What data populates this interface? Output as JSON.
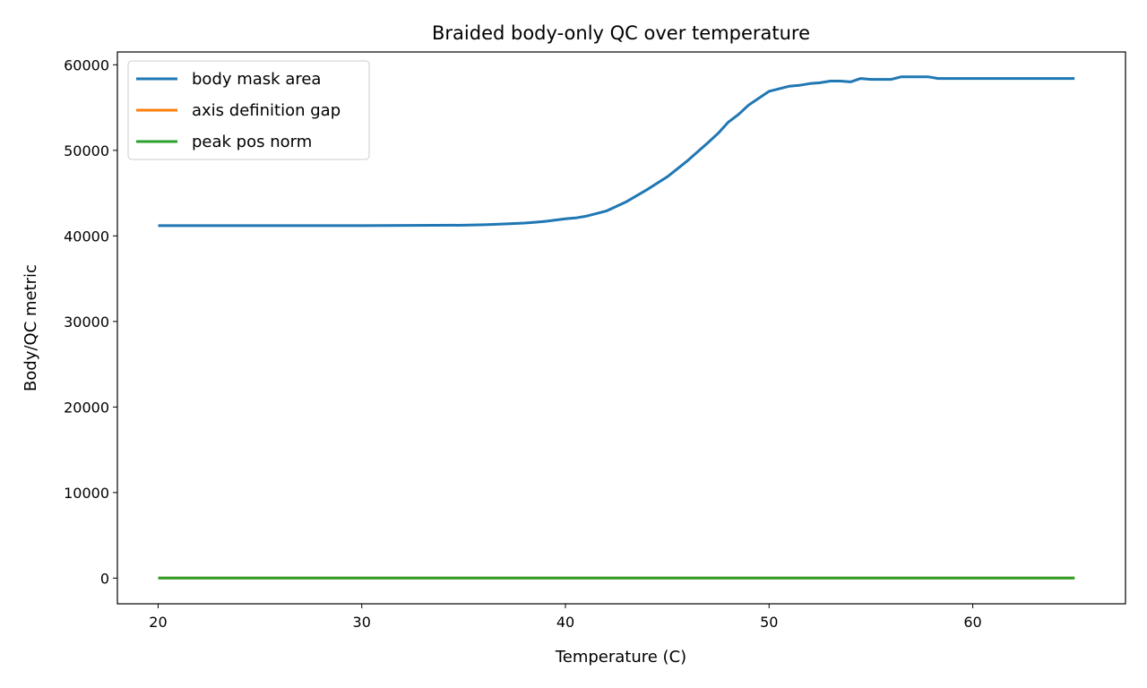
{
  "chart_data": {
    "type": "line",
    "title": "Braided body-only QC over temperature",
    "xlabel": "Temperature (C)",
    "ylabel": "Body/QC metric",
    "xlim": [
      18,
      67.5
    ],
    "ylim": [
      -3000,
      61500
    ],
    "xticks": [
      20,
      30,
      40,
      50,
      60
    ],
    "yticks": [
      0,
      10000,
      20000,
      30000,
      40000,
      50000,
      60000
    ],
    "grid": false,
    "legend_position": "top-left",
    "series": [
      {
        "name": "body mask area",
        "color": "#1f77b4",
        "x": [
          20,
          25,
          30,
          35,
          36,
          37,
          38,
          38.5,
          39,
          40,
          40.5,
          41,
          42,
          43,
          44,
          45,
          46,
          47,
          47.5,
          48,
          48.5,
          49,
          50,
          50.5,
          51,
          51.5,
          52,
          52.5,
          53,
          53.5,
          54,
          54.5,
          55,
          55.5,
          56,
          56.5,
          57,
          57.8,
          58.3,
          60,
          65
        ],
        "values": [
          41200,
          41200,
          41200,
          41250,
          41300,
          41400,
          41500,
          41600,
          41700,
          42000,
          42100,
          42300,
          42900,
          44000,
          45400,
          46900,
          48800,
          50900,
          52000,
          53300,
          54200,
          55300,
          56900,
          57200,
          57500,
          57600,
          57800,
          57900,
          58100,
          58100,
          58000,
          58400,
          58300,
          58300,
          58300,
          58600,
          58600,
          58600,
          58400,
          58400,
          58400
        ]
      },
      {
        "name": "axis definition gap",
        "color": "#ff7f0e",
        "x": [
          20,
          65
        ],
        "values": [
          0,
          0
        ]
      },
      {
        "name": "peak pos norm",
        "color": "#2ca02c",
        "x": [
          20,
          65
        ],
        "values": [
          0,
          0
        ]
      }
    ]
  }
}
